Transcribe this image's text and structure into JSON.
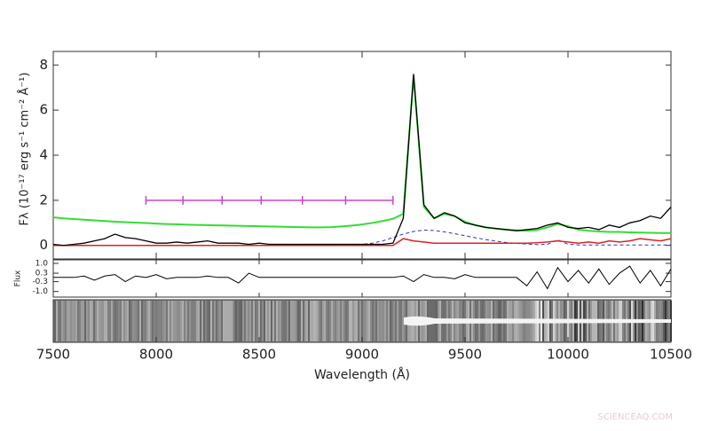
{
  "chart_data": [
    {
      "type": "line",
      "ylabel": "Fλ (10⁻¹⁷ erg s⁻¹ cm⁻² Å⁻¹)",
      "xlabel": "Wavelength (Å)",
      "x": [
        7500,
        7550,
        7600,
        7650,
        7700,
        7750,
        7800,
        7850,
        7900,
        7950,
        8000,
        8050,
        8100,
        8150,
        8200,
        8250,
        8300,
        8350,
        8400,
        8450,
        8500,
        8550,
        8600,
        8650,
        8700,
        8750,
        8800,
        8850,
        8900,
        8950,
        9000,
        9050,
        9100,
        9150,
        9200,
        9250,
        9300,
        9350,
        9400,
        9450,
        9500,
        9550,
        9600,
        9650,
        9700,
        9750,
        9800,
        9850,
        9900,
        9950,
        10000,
        10050,
        10100,
        10150,
        10200,
        10250,
        10300,
        10350,
        10400,
        10450,
        10500
      ],
      "xlim": [
        7500,
        10500
      ],
      "xticks": [
        7500,
        8000,
        8500,
        9000,
        9500,
        10000,
        10500
      ],
      "ylim": [
        -0.6,
        8.6
      ],
      "yticks": [
        0,
        2,
        4,
        6,
        8
      ],
      "series": [
        {
          "color": "#33dd33",
          "dash": false,
          "width": 2,
          "values": [
            1.25,
            1.2,
            1.17,
            1.14,
            1.11,
            1.08,
            1.05,
            1.03,
            1.01,
            0.99,
            0.97,
            0.95,
            0.94,
            0.92,
            0.91,
            0.9,
            0.89,
            0.88,
            0.87,
            0.86,
            0.85,
            0.84,
            0.83,
            0.82,
            0.81,
            0.8,
            0.8,
            0.81,
            0.84,
            0.88,
            0.93,
            1.0,
            1.08,
            1.18,
            1.4,
            7.5,
            1.7,
            1.2,
            1.4,
            1.3,
            1.05,
            0.9,
            0.8,
            0.74,
            0.7,
            0.67,
            0.65,
            0.68,
            0.8,
            0.95,
            0.85,
            0.7,
            0.65,
            0.62,
            0.6,
            0.6,
            0.58,
            0.57,
            0.56,
            0.55,
            0.55
          ]
        },
        {
          "color": "#3333bb",
          "dash": true,
          "width": 1,
          "values": [
            0,
            0,
            0,
            0,
            0,
            0,
            0,
            0,
            0,
            0,
            0,
            0,
            0,
            0,
            0,
            0,
            0,
            0,
            0,
            0,
            0,
            0,
            0,
            0,
            0,
            0,
            0,
            0,
            0,
            0,
            0.05,
            0.1,
            0.2,
            0.35,
            0.5,
            0.62,
            0.68,
            0.66,
            0.6,
            0.52,
            0.43,
            0.34,
            0.26,
            0.19,
            0.13,
            0.09,
            0.06,
            0.04,
            0.05,
            0.25,
            0.05,
            0.02,
            0.02,
            0.02,
            0.02,
            0.02,
            0.02,
            0.02,
            0.02,
            0.02,
            0.02
          ]
        },
        {
          "color": "#dd2222",
          "dash": false,
          "width": 1.5,
          "values": [
            0,
            0,
            0,
            0,
            0,
            0,
            0,
            0,
            0,
            0,
            0,
            0,
            0,
            0,
            0,
            0,
            0,
            0,
            0,
            0,
            0,
            0,
            0,
            0,
            0,
            0,
            0,
            0,
            0,
            0,
            0,
            0,
            0,
            0,
            0.3,
            0.2,
            0.15,
            0.1,
            0.1,
            0.1,
            0.1,
            0.1,
            0.1,
            0.1,
            0.1,
            0.1,
            0.1,
            0.12,
            0.15,
            0.2,
            0.15,
            0.1,
            0.15,
            0.1,
            0.2,
            0.15,
            0.2,
            0.3,
            0.25,
            0.2,
            0.3
          ]
        },
        {
          "color": "#000000",
          "dash": false,
          "width": 1.3,
          "values": [
            0.05,
            0,
            0.05,
            0.1,
            0.2,
            0.3,
            0.5,
            0.35,
            0.3,
            0.2,
            0.1,
            0.1,
            0.15,
            0.1,
            0.15,
            0.2,
            0.1,
            0.1,
            0.1,
            0.05,
            0.1,
            0.05,
            0.05,
            0.05,
            0.05,
            0.05,
            0.05,
            0.05,
            0.05,
            0.05,
            0.05,
            0.05,
            0.05,
            0.1,
            1.2,
            7.6,
            1.8,
            1.2,
            1.45,
            1.3,
            1.0,
            0.9,
            0.8,
            0.75,
            0.7,
            0.65,
            0.7,
            0.75,
            0.9,
            1.0,
            0.8,
            0.75,
            0.8,
            0.7,
            0.9,
            0.8,
            1.0,
            1.1,
            1.3,
            1.2,
            1.7
          ]
        },
        {
          "color": "#cc44cc",
          "dash": false,
          "width": 1.5,
          "ticks": true,
          "x": [
            7950,
            8130,
            8320,
            8510,
            8710,
            8920,
            9150
          ],
          "values": [
            2,
            2,
            2,
            2,
            2,
            2,
            2
          ]
        }
      ]
    },
    {
      "type": "line",
      "ylabel": "Flux",
      "x": [
        7500,
        7550,
        7600,
        7650,
        7700,
        7750,
        7800,
        7850,
        7900,
        7950,
        8000,
        8050,
        8100,
        8150,
        8200,
        8250,
        8300,
        8350,
        8400,
        8450,
        8500,
        8550,
        8600,
        8650,
        8700,
        8750,
        8800,
        8850,
        8900,
        8950,
        9000,
        9050,
        9100,
        9150,
        9200,
        9250,
        9300,
        9350,
        9400,
        9450,
        9500,
        9550,
        9600,
        9650,
        9700,
        9750,
        9800,
        9850,
        9900,
        9950,
        10000,
        10050,
        10100,
        10150,
        10200,
        10250,
        10300,
        10350,
        10400,
        10450,
        10500
      ],
      "xlim": [
        7500,
        10500
      ],
      "ylim": [
        -1.4,
        1.25
      ],
      "yticks": [
        {
          "value": 1,
          "label": "1.0"
        },
        0.3,
        -0.3,
        {
          "value": -1,
          "label": "-1.0"
        }
      ],
      "series": [
        {
          "color": "#000000",
          "dash": false,
          "width": 1,
          "values": [
            0,
            0,
            0,
            0.1,
            -0.2,
            0.1,
            0.2,
            -0.3,
            0.1,
            0,
            0.2,
            -0.1,
            0,
            0,
            0,
            0.1,
            0,
            0,
            -0.4,
            0.3,
            0,
            0,
            0,
            0,
            0,
            0,
            0,
            0,
            0,
            0,
            0,
            0,
            0,
            0,
            0.1,
            -0.3,
            0.2,
            0,
            0,
            -0.1,
            0.2,
            0,
            0,
            0,
            0,
            0,
            -0.6,
            0.4,
            -0.8,
            0.7,
            -0.3,
            0.5,
            -0.4,
            0.6,
            -0.5,
            0.3,
            0.8,
            -0.4,
            0.5,
            -0.6,
            0.6
          ]
        }
      ]
    }
  ],
  "watermark": "SCIENCEAQ.COM"
}
